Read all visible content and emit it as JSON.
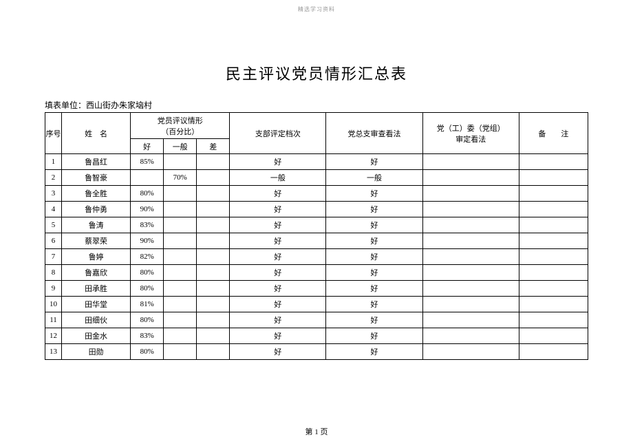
{
  "watermark": "精选学习资料",
  "title": "民主评议党员情形汇总表",
  "subtitle": "填表单位：西山街办朱家垴村",
  "headers": {
    "seq": "序号",
    "name": "姓　名",
    "eval_group": "党员评议情形\n（百分比）",
    "good": "好",
    "average": "一般",
    "bad": "差",
    "branch": "支部评定档次",
    "general": "党总支审查看法",
    "committee": "党（工）委（党组）\n审定看法",
    "remark": "备　　注"
  },
  "rows": [
    {
      "seq": "1",
      "name": "鲁昌红",
      "good": "85%",
      "avg": "",
      "bad": "",
      "branch": "好",
      "general": "好",
      "committee": "",
      "remark": ""
    },
    {
      "seq": "2",
      "name": "鲁智豪",
      "good": "",
      "avg": "70%",
      "bad": "",
      "branch": "一般",
      "general": "一般",
      "committee": "",
      "remark": ""
    },
    {
      "seq": "3",
      "name": "鲁全胜",
      "good": "80%",
      "avg": "",
      "bad": "",
      "branch": "好",
      "general": "好",
      "committee": "",
      "remark": ""
    },
    {
      "seq": "4",
      "name": "鲁仲勇",
      "good": "90%",
      "avg": "",
      "bad": "",
      "branch": "好",
      "general": "好",
      "committee": "",
      "remark": ""
    },
    {
      "seq": "5",
      "name": "鲁涛",
      "good": "83%",
      "avg": "",
      "bad": "",
      "branch": "好",
      "general": "好",
      "committee": "",
      "remark": ""
    },
    {
      "seq": "6",
      "name": "蔡翠荣",
      "good": "90%",
      "avg": "",
      "bad": "",
      "branch": "好",
      "general": "好",
      "committee": "",
      "remark": ""
    },
    {
      "seq": "7",
      "name": "鲁婷",
      "good": "82%",
      "avg": "",
      "bad": "",
      "branch": "好",
      "general": "好",
      "committee": "",
      "remark": ""
    },
    {
      "seq": "8",
      "name": "鲁嘉欣",
      "good": "80%",
      "avg": "",
      "bad": "",
      "branch": "好",
      "general": "好",
      "committee": "",
      "remark": ""
    },
    {
      "seq": "9",
      "name": "田承胜",
      "good": "80%",
      "avg": "",
      "bad": "",
      "branch": "好",
      "general": "好",
      "committee": "",
      "remark": ""
    },
    {
      "seq": "10",
      "name": "田华堂",
      "good": "81%",
      "avg": "",
      "bad": "",
      "branch": "好",
      "general": "好",
      "committee": "",
      "remark": ""
    },
    {
      "seq": "11",
      "name": "田细伙",
      "good": "80%",
      "avg": "",
      "bad": "",
      "branch": "好",
      "general": "好",
      "committee": "",
      "remark": ""
    },
    {
      "seq": "12",
      "name": "田金水",
      "good": "83%",
      "avg": "",
      "bad": "",
      "branch": "好",
      "general": "好",
      "committee": "",
      "remark": ""
    },
    {
      "seq": "13",
      "name": "田勋",
      "good": "80%",
      "avg": "",
      "bad": "",
      "branch": "好",
      "general": "好",
      "committee": "",
      "remark": ""
    }
  ],
  "footer": "第 1 页",
  "styles": {
    "background_color": "#ffffff",
    "border_color": "#000000",
    "text_color": "#000000",
    "watermark_color": "#999999",
    "title_fontsize": 22,
    "body_fontsize": 11,
    "col_widths": {
      "seq": 24,
      "name": 100,
      "good": 48,
      "avg": 48,
      "bad": 48,
      "branch": 140,
      "general": 140,
      "committee": 140,
      "remark": 100
    }
  }
}
